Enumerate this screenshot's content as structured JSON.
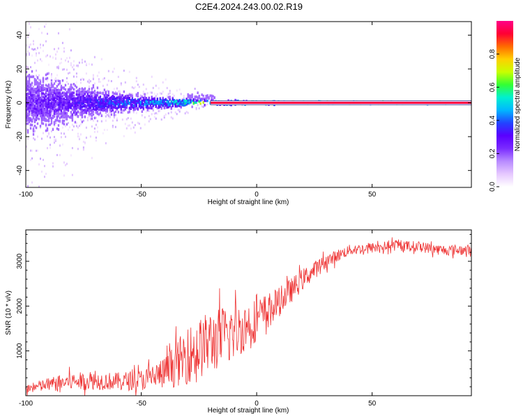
{
  "title": "C2E4.2024.243.00.02.R19",
  "colors": {
    "snr_line": "#ee3333",
    "spectrogram_colormap": [
      "#ffffff",
      "#e6c8ff",
      "#b88bff",
      "#7a2bff",
      "#5a00ff",
      "#2244ff",
      "#00b7ff",
      "#00f0d0",
      "#33ff33",
      "#c8ff00",
      "#ffd000",
      "#ff6a00",
      "#ff0033",
      "#ff0088"
    ]
  },
  "chart_data": [
    {
      "type": "heatmap",
      "xlabel": "Height of straight line (km)",
      "ylabel": "Frequency (Hz)",
      "xlim": [
        -100,
        93
      ],
      "ylim": [
        -50,
        48
      ],
      "x_ticks": [
        -100,
        -50,
        0,
        50
      ],
      "y_ticks": [
        -40,
        -20,
        0,
        20,
        40
      ],
      "colorbar": {
        "label": "Normalized spectral amplitude",
        "range": [
          0,
          1
        ],
        "ticks": [
          0.0,
          0.2,
          0.4,
          0.6,
          0.8
        ]
      },
      "ridge": {
        "frequency": 0,
        "description_points": [
          {
            "x": -100,
            "amplitude": 0.3,
            "spread": 25
          },
          {
            "x": -80,
            "amplitude": 0.35,
            "spread": 15
          },
          {
            "x": -60,
            "amplitude": 0.45,
            "spread": 8
          },
          {
            "x": -40,
            "amplitude": 0.55,
            "spread": 5
          },
          {
            "x": -20,
            "amplitude": 0.8,
            "spread": 2
          },
          {
            "x": 0,
            "amplitude": 0.85,
            "spread": 1.5
          },
          {
            "x": 20,
            "amplitude": 0.95,
            "spread": 1
          },
          {
            "x": 93,
            "amplitude": 0.95,
            "spread": 1
          }
        ]
      }
    },
    {
      "type": "line",
      "xlabel": "Height of straight line (km)",
      "ylabel": "SNR (10 * v/v)",
      "xlim": [
        -100,
        93
      ],
      "ylim": [
        0,
        3700
      ],
      "x_ticks": [
        -100,
        -50,
        0,
        50
      ],
      "y_ticks": [
        1000,
        2000,
        3000
      ],
      "series": [
        {
          "envelope": [
            {
              "x": -100,
              "mean": 150,
              "noise": 120
            },
            {
              "x": -90,
              "mean": 250,
              "noise": 200
            },
            {
              "x": -80,
              "mean": 320,
              "noise": 250
            },
            {
              "x": -70,
              "mean": 330,
              "noise": 250
            },
            {
              "x": -60,
              "mean": 320,
              "noise": 250
            },
            {
              "x": -50,
              "mean": 350,
              "noise": 300
            },
            {
              "x": -40,
              "mean": 500,
              "noise": 450
            },
            {
              "x": -30,
              "mean": 900,
              "noise": 800
            },
            {
              "x": -20,
              "mean": 1200,
              "noise": 900
            },
            {
              "x": -10,
              "mean": 1400,
              "noise": 800
            },
            {
              "x": 0,
              "mean": 1700,
              "noise": 600
            },
            {
              "x": 10,
              "mean": 2100,
              "noise": 400
            },
            {
              "x": 20,
              "mean": 2600,
              "noise": 300
            },
            {
              "x": 30,
              "mean": 3000,
              "noise": 200
            },
            {
              "x": 40,
              "mean": 3250,
              "noise": 150
            },
            {
              "x": 50,
              "mean": 3300,
              "noise": 150
            },
            {
              "x": 60,
              "mean": 3350,
              "noise": 150
            },
            {
              "x": 70,
              "mean": 3330,
              "noise": 150
            },
            {
              "x": 80,
              "mean": 3250,
              "noise": 150
            },
            {
              "x": 93,
              "mean": 3250,
              "noise": 150
            }
          ],
          "sample_count": 900
        }
      ]
    }
  ]
}
